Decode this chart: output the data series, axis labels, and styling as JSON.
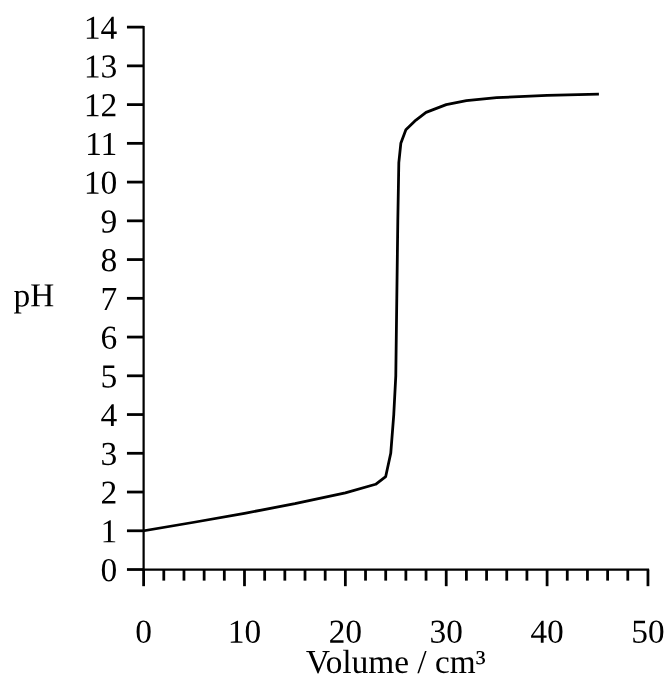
{
  "chart_data": {
    "type": "line",
    "xlabel": "Volume / cm³",
    "ylabel": "pH",
    "series": [
      {
        "color": "#000000",
        "x": [
          0,
          5,
          10,
          15,
          20,
          23,
          24,
          24.5,
          24.8,
          25,
          25.1,
          25.2,
          25.3,
          25.5,
          26,
          27,
          28,
          30,
          32,
          35,
          40,
          45
        ],
        "values": [
          1.0,
          1.22,
          1.45,
          1.7,
          1.98,
          2.2,
          2.4,
          3.0,
          4,
          5,
          7,
          9,
          10.5,
          11,
          11.35,
          11.6,
          11.8,
          12.0,
          12.1,
          12.18,
          12.24,
          12.27
        ]
      }
    ],
    "xlim": [
      0,
      50
    ],
    "ylim": [
      0,
      14
    ],
    "xticks": [
      0,
      {
        "value": 2,
        "label": null
      },
      {
        "value": 4,
        "label": null
      },
      {
        "value": 6,
        "label": null
      },
      {
        "value": 8,
        "label": null
      },
      10,
      {
        "value": 12,
        "label": null
      },
      {
        "value": 14,
        "label": null
      },
      {
        "value": 16,
        "label": null
      },
      {
        "value": 18,
        "label": null
      },
      20,
      {
        "value": 22,
        "label": null
      },
      {
        "value": 24,
        "label": null
      },
      {
        "value": 26,
        "label": null
      },
      {
        "value": 28,
        "label": null
      },
      30,
      {
        "value": 32,
        "label": null
      },
      {
        "value": 34,
        "label": null
      },
      {
        "value": 36,
        "label": null
      },
      {
        "value": 38,
        "label": null
      },
      40,
      {
        "value": 42,
        "label": null
      },
      {
        "value": 44,
        "label": null
      },
      {
        "value": 46,
        "label": null
      },
      {
        "value": 48,
        "label": null
      },
      50
    ],
    "yticks": [
      0,
      1,
      2,
      3,
      4,
      5,
      6,
      7,
      8,
      9,
      10,
      11,
      12,
      13,
      14
    ],
    "grid": false,
    "marker": "none",
    "line_style": "solid"
  }
}
